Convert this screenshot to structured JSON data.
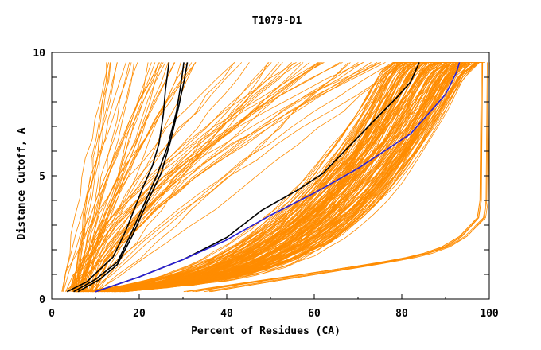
{
  "chart_data": {
    "type": "line",
    "title": "T1079-D1",
    "xlabel": "Percent of Residues (CA)",
    "ylabel": "Distance Cutoff, A",
    "xlim": [
      0,
      100
    ],
    "ylim": [
      0,
      10
    ],
    "x_ticks": [
      "0",
      "20",
      "40",
      "60",
      "80",
      "100"
    ],
    "y_ticks": [
      "0",
      "5",
      "10"
    ],
    "grid": false,
    "legend": "none",
    "colors": {
      "orange": "#ff8c00",
      "black": "#000000",
      "blue": "#2a1fd6"
    },
    "highlight_series": [
      {
        "color": "#000000",
        "points": [
          [
            3.5,
            0.3
          ],
          [
            8,
            0.7
          ],
          [
            14,
            1.7
          ],
          [
            17,
            2.8
          ],
          [
            19,
            3.7
          ],
          [
            21,
            4.6
          ],
          [
            23,
            5.4
          ],
          [
            24.5,
            6.3
          ],
          [
            25.5,
            7.5
          ],
          [
            26,
            8.5
          ],
          [
            26.8,
            9.6
          ]
        ]
      },
      {
        "color": "#000000",
        "points": [
          [
            5,
            0.3
          ],
          [
            10,
            0.8
          ],
          [
            15,
            1.5
          ],
          [
            18,
            2.6
          ],
          [
            21,
            3.8
          ],
          [
            24,
            5.0
          ],
          [
            26.5,
            6.2
          ],
          [
            28.5,
            7.6
          ],
          [
            29.5,
            8.7
          ],
          [
            30.2,
            9.6
          ]
        ]
      },
      {
        "color": "#000000",
        "points": [
          [
            6,
            0.3
          ],
          [
            11,
            0.8
          ],
          [
            15,
            1.4
          ],
          [
            18.5,
            2.6
          ],
          [
            22,
            4.0
          ],
          [
            25,
            5.1
          ],
          [
            27,
            6.3
          ],
          [
            29,
            7.8
          ],
          [
            30.2,
            8.8
          ],
          [
            31,
            9.6
          ]
        ]
      },
      {
        "color": "#000000",
        "points": [
          [
            10,
            0.3
          ],
          [
            20,
            0.9
          ],
          [
            30,
            1.6
          ],
          [
            40,
            2.5
          ],
          [
            48,
            3.6
          ],
          [
            56,
            4.4
          ],
          [
            62,
            5.1
          ],
          [
            68,
            6.2
          ],
          [
            74,
            7.3
          ],
          [
            79,
            8.2
          ],
          [
            82,
            8.8
          ],
          [
            84,
            9.6
          ]
        ]
      },
      {
        "color": "#2a1fd6",
        "points": [
          [
            10,
            0.3
          ],
          [
            20,
            0.9
          ],
          [
            30,
            1.6
          ],
          [
            40,
            2.4
          ],
          [
            50,
            3.4
          ],
          [
            60,
            4.3
          ],
          [
            70,
            5.3
          ],
          [
            76,
            6.0
          ],
          [
            82,
            6.7
          ],
          [
            86,
            7.5
          ],
          [
            90,
            8.3
          ],
          [
            92.5,
            9.2
          ],
          [
            93.2,
            9.6
          ]
        ]
      }
    ],
    "background_series_style": {
      "color": "#ff8c00",
      "count": 230,
      "description_note": ""
    }
  }
}
